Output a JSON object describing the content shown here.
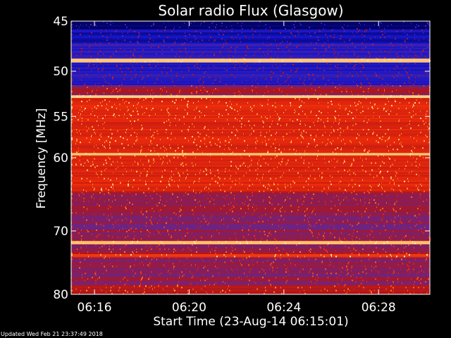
{
  "chart_data": {
    "type": "heatmap",
    "title": "Solar radio Flux (Glasgow)",
    "xlabel": "Start Time (23-Aug-14 06:15:01)",
    "ylabel": "Frequency [MHz]",
    "y_scale": "log",
    "xlim": [
      "06:15:01",
      "06:30:10"
    ],
    "ylim": [
      45,
      80
    ],
    "x_ticks": [
      "06:16",
      "06:20",
      "06:24",
      "06:28"
    ],
    "y_ticks": [
      45,
      50,
      55,
      60,
      70,
      80
    ],
    "grid": false,
    "colormap": [
      "#00005a",
      "#1414c8",
      "#5a28a0",
      "#b41414",
      "#f02d0a",
      "#ff8c1e",
      "#ffe6a0"
    ],
    "frequency_bands": [
      {
        "mhz_from": 45.0,
        "mhz_to": 45.8,
        "level": 0.0
      },
      {
        "mhz_from": 45.8,
        "mhz_to": 47.2,
        "level": 0.15
      },
      {
        "mhz_from": 47.2,
        "mhz_to": 48.7,
        "level": 0.22
      },
      {
        "mhz_from": 48.7,
        "mhz_to": 49.1,
        "level": 0.98
      },
      {
        "mhz_from": 49.1,
        "mhz_to": 51.5,
        "level": 0.2
      },
      {
        "mhz_from": 51.5,
        "mhz_to": 52.6,
        "level": 0.45
      },
      {
        "mhz_from": 52.6,
        "mhz_to": 52.9,
        "level": 0.95
      },
      {
        "mhz_from": 52.9,
        "mhz_to": 59.4,
        "level": 0.62
      },
      {
        "mhz_from": 59.4,
        "mhz_to": 59.7,
        "level": 0.95
      },
      {
        "mhz_from": 59.7,
        "mhz_to": 64.5,
        "level": 0.6
      },
      {
        "mhz_from": 64.5,
        "mhz_to": 67.5,
        "level": 0.45
      },
      {
        "mhz_from": 67.5,
        "mhz_to": 71.5,
        "level": 0.4
      },
      {
        "mhz_from": 71.5,
        "mhz_to": 72.0,
        "level": 0.95
      },
      {
        "mhz_from": 72.0,
        "mhz_to": 73.5,
        "level": 0.45
      },
      {
        "mhz_from": 73.5,
        "mhz_to": 74.0,
        "level": 0.7
      },
      {
        "mhz_from": 74.0,
        "mhz_to": 78.5,
        "level": 0.42
      },
      {
        "mhz_from": 78.5,
        "mhz_to": 80.0,
        "level": 0.5
      }
    ]
  },
  "footer": {
    "updated": "Updated Wed Feb 21 23:37:49 2018"
  }
}
